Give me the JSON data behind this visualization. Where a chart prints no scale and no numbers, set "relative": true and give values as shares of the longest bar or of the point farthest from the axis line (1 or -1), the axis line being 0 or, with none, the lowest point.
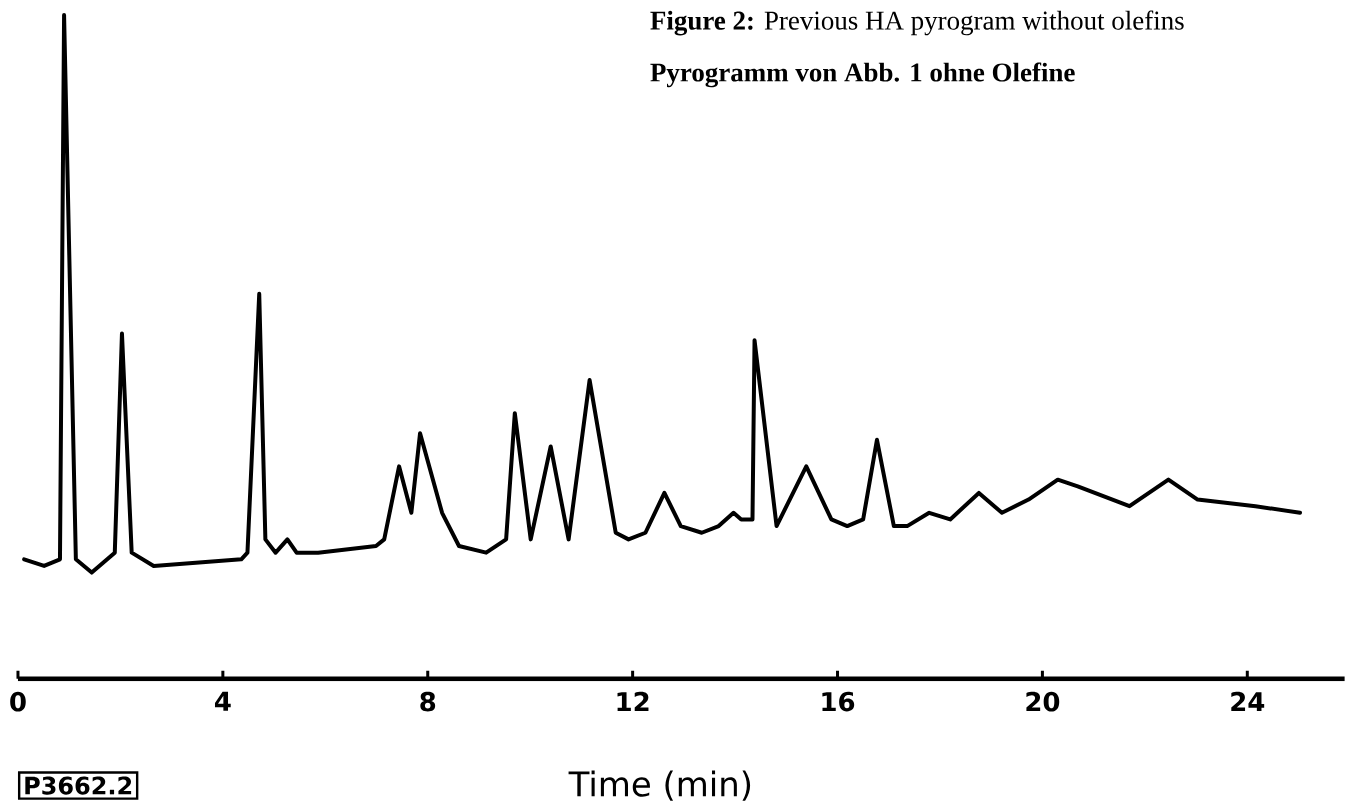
{
  "chart_data": {
    "type": "line",
    "title": "**Figure 2:** Previous HA pyrogram without olefins",
    "subtitle": "Pyrogramm von Abb. 1 ohne Olefine",
    "xlabel": "Time  (min)",
    "annotations": [
      "P3662.2"
    ],
    "relative": true,
    "color": "#000000",
    "xlim": [
      0,
      25.9
    ],
    "xticks": [
      0,
      4,
      8,
      12,
      16,
      20,
      24
    ],
    "x": [
      0.12,
      0.51,
      0.82,
      0.9,
      1.13,
      1.44,
      1.89,
      2.03,
      2.22,
      2.65,
      4.36,
      4.48,
      4.71,
      4.83,
      5.03,
      5.26,
      5.44,
      5.86,
      6.99,
      7.15,
      7.44,
      7.68,
      7.85,
      8.28,
      8.61,
      9.14,
      9.53,
      9.7,
      10.01,
      10.4,
      10.75,
      11.16,
      11.67,
      11.92,
      12.25,
      12.62,
      12.94,
      13.35,
      13.68,
      13.97,
      14.12,
      14.34,
      14.38,
      14.81,
      15.39,
      15.88,
      16.19,
      16.5,
      16.77,
      17.1,
      17.36,
      17.79,
      18.2,
      18.76,
      19.21,
      19.73,
      20.3,
      20.69,
      21.7,
      22.46,
      23.03,
      24.16,
      25.03
    ],
    "values": [
      0.18,
      0.17,
      0.18,
      1.0,
      0.18,
      0.16,
      0.19,
      0.52,
      0.19,
      0.17,
      0.18,
      0.19,
      0.58,
      0.21,
      0.19,
      0.21,
      0.19,
      0.19,
      0.2,
      0.21,
      0.32,
      0.25,
      0.37,
      0.25,
      0.2,
      0.19,
      0.21,
      0.4,
      0.21,
      0.35,
      0.21,
      0.45,
      0.22,
      0.21,
      0.22,
      0.28,
      0.23,
      0.22,
      0.23,
      0.25,
      0.24,
      0.24,
      0.51,
      0.23,
      0.32,
      0.24,
      0.23,
      0.24,
      0.36,
      0.23,
      0.23,
      0.25,
      0.24,
      0.28,
      0.25,
      0.27,
      0.3,
      0.29,
      0.26,
      0.3,
      0.27,
      0.26,
      0.25
    ]
  }
}
